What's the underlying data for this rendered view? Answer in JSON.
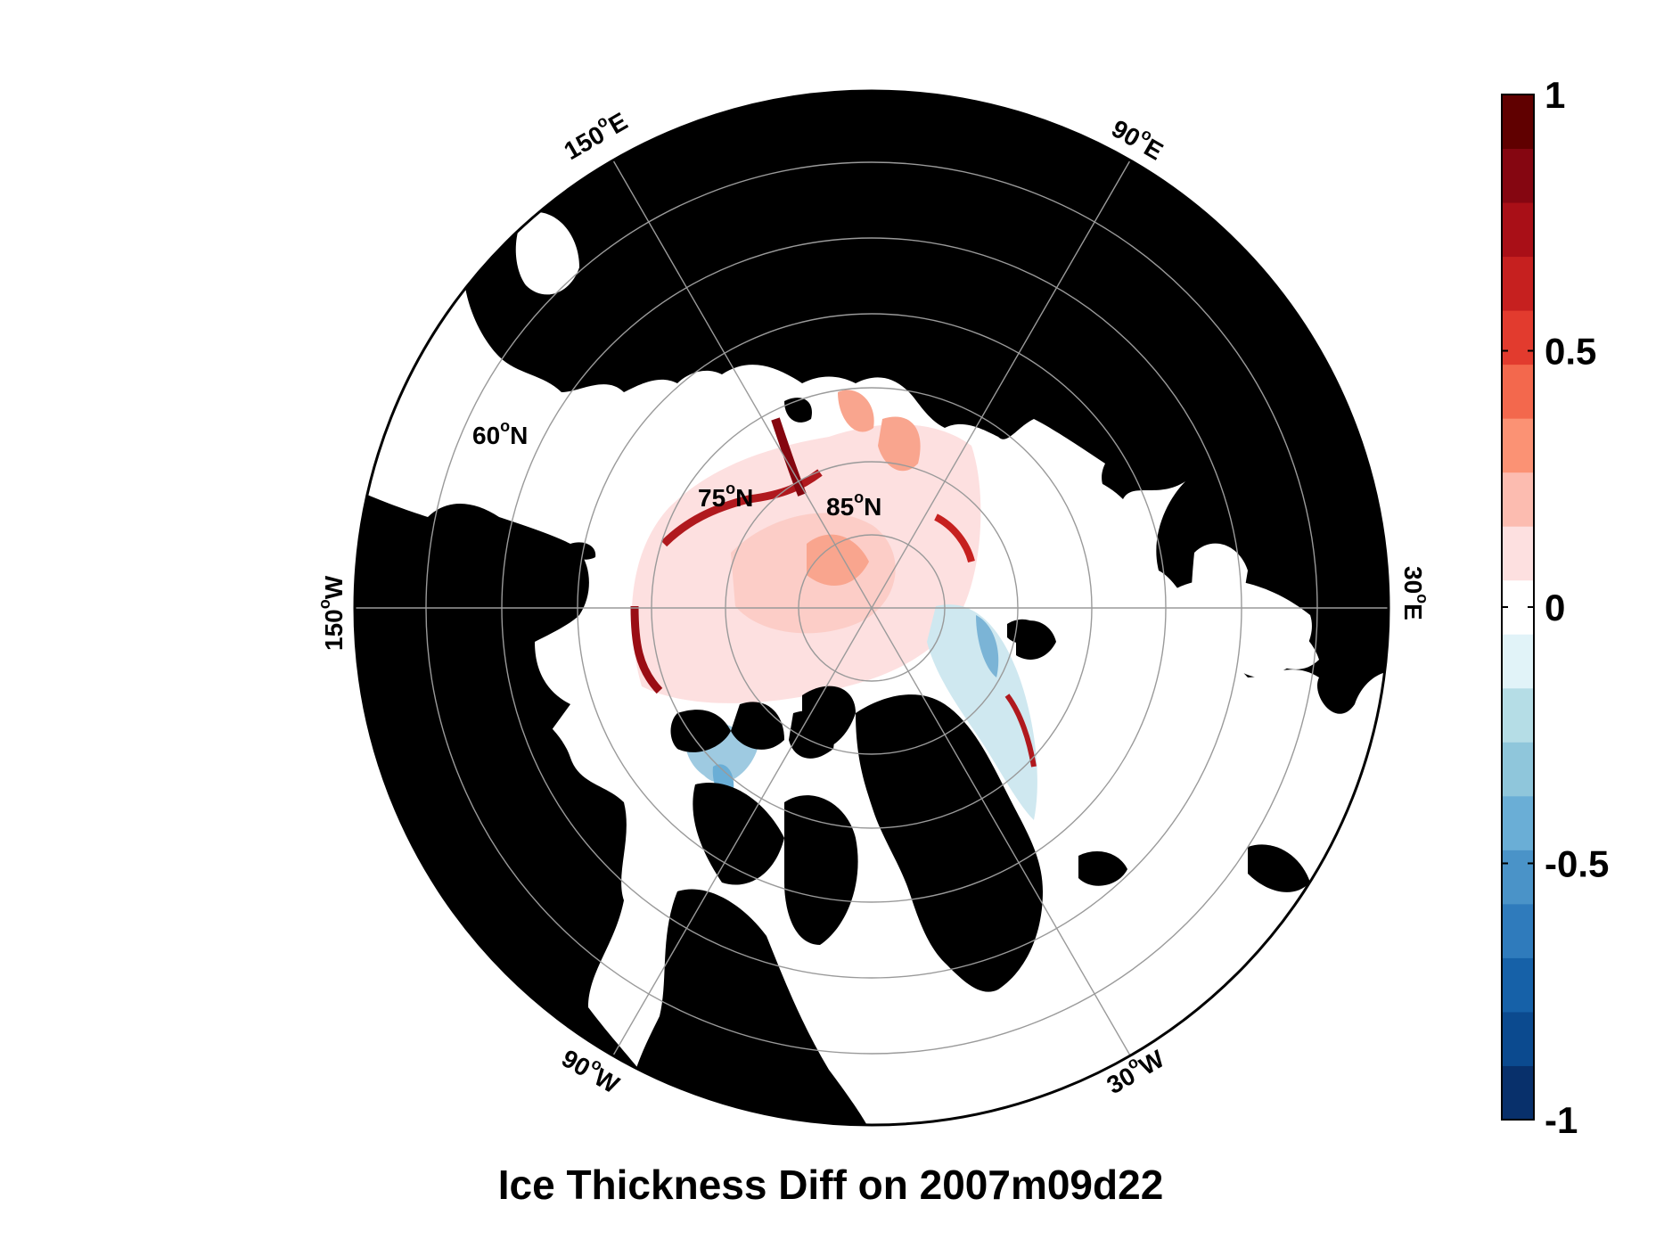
{
  "title": "Ice Thickness Diff on 2007m09d22",
  "map": {
    "projection": "north polar stereographic",
    "latitude_labels": [
      "60",
      "75",
      "85"
    ],
    "latitude_suffix": "N",
    "longitude_labels": [
      "150",
      "90",
      "150",
      "30",
      "90",
      "30"
    ],
    "longitude_hemispheres": [
      "E",
      "E",
      "W",
      "E",
      "W",
      "W"
    ],
    "degree_symbol": "o",
    "colors": {
      "land": "#000000",
      "ocean_no_ice": "#ffffff",
      "grid": "#9a9a9a",
      "positive_diff": "#c8251f",
      "negative_diff": "#3a78b5"
    }
  },
  "colorbar": {
    "min": -1,
    "max": 1,
    "ticks": [
      "1",
      "0.5",
      "0",
      "-0.5",
      "-1"
    ],
    "colors": [
      "#08306b",
      "#0b4a8f",
      "#1661a8",
      "#2f7bbc",
      "#4a93c8",
      "#6aaed6",
      "#8fc6db",
      "#b5dde6",
      "#e1f3f8",
      "#ffffff",
      "#fde0e0",
      "#fcbcb0",
      "#fb9274",
      "#f3684d",
      "#e23b2e",
      "#c6201f",
      "#a90f17",
      "#850611",
      "#600000"
    ]
  }
}
